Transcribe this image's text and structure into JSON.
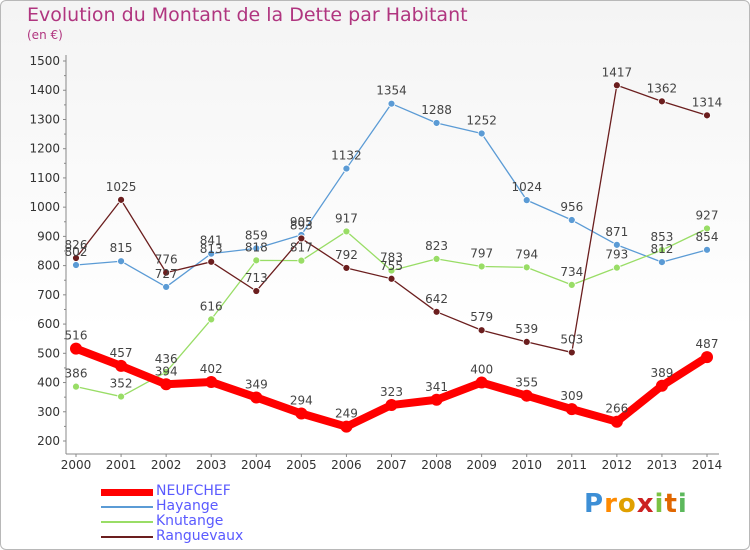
{
  "header": {
    "title": "Evolution du Montant de la Dette par Habitant",
    "subtitle": "(en €)"
  },
  "logo": {
    "text": "Proxiti"
  },
  "colors": {
    "neufchef": "#ff0000",
    "hayange": "#5b9bd5",
    "knutange": "#99dd66",
    "ranguevaux": "#6b1e1e",
    "title": "#b0357f",
    "legend_text": "#5a5aff"
  },
  "chart_data": {
    "type": "line",
    "x": [
      "2000",
      "2001",
      "2002",
      "2003",
      "2004",
      "2005",
      "2006",
      "2007",
      "2008",
      "2009",
      "2010",
      "2011",
      "2012",
      "2013",
      "2014"
    ],
    "ylim": [
      200,
      1500
    ],
    "yticks": [
      200,
      300,
      400,
      500,
      600,
      700,
      800,
      900,
      1000,
      1100,
      1200,
      1300,
      1400,
      1500
    ],
    "grid": false,
    "legend_position": "bottom-left",
    "series": [
      {
        "name": "NEUFCHEF",
        "key": "neufchef",
        "values": [
          516,
          457,
          394,
          402,
          349,
          294,
          249,
          323,
          341,
          400,
          355,
          309,
          266,
          389,
          487
        ]
      },
      {
        "name": "Hayange",
        "key": "hayange",
        "values": [
          802,
          815,
          727,
          841,
          859,
          905,
          1132,
          1354,
          1288,
          1252,
          1024,
          956,
          871,
          812,
          854
        ]
      },
      {
        "name": "Knutange",
        "key": "knutange",
        "values": [
          386,
          352,
          436,
          616,
          818,
          817,
          917,
          783,
          823,
          797,
          794,
          734,
          793,
          853,
          927
        ]
      },
      {
        "name": "Ranguevaux",
        "key": "ranguevaux",
        "values": [
          826,
          1025,
          776,
          813,
          713,
          893,
          792,
          755,
          642,
          579,
          539,
          503,
          1417,
          1362,
          1314
        ]
      }
    ]
  }
}
